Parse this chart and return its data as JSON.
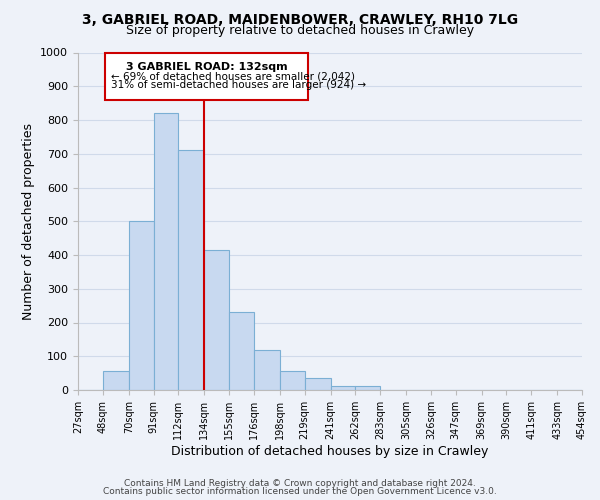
{
  "title_line1": "3, GABRIEL ROAD, MAIDENBOWER, CRAWLEY, RH10 7LG",
  "title_line2": "Size of property relative to detached houses in Crawley",
  "xlabel": "Distribution of detached houses by size in Crawley",
  "ylabel": "Number of detached properties",
  "footer_line1": "Contains HM Land Registry data © Crown copyright and database right 2024.",
  "footer_line2": "Contains public sector information licensed under the Open Government Licence v3.0.",
  "bar_edges": [
    27,
    48,
    70,
    91,
    112,
    134,
    155,
    176,
    198,
    219,
    241,
    262,
    283,
    305,
    326,
    347,
    369,
    390,
    411,
    433,
    454
  ],
  "bar_heights": [
    0,
    55,
    500,
    820,
    710,
    415,
    230,
    118,
    55,
    35,
    12,
    12,
    0,
    0,
    0,
    0,
    0,
    0,
    0,
    0
  ],
  "bar_color": "#c8d9f0",
  "bar_edgecolor": "#7bafd4",
  "reference_line_x": 134,
  "ylim": [
    0,
    1000
  ],
  "yticks": [
    0,
    100,
    200,
    300,
    400,
    500,
    600,
    700,
    800,
    900,
    1000
  ],
  "annotation_title": "3 GABRIEL ROAD: 132sqm",
  "annotation_line1": "← 69% of detached houses are smaller (2,042)",
  "annotation_line2": "31% of semi-detached houses are larger (924) →",
  "annotation_box_color": "#ffffff",
  "annotation_box_edgecolor": "#cc0000",
  "ref_line_color": "#cc0000",
  "grid_color": "#d0daea",
  "bg_color": "#eef2f9",
  "tick_labels": [
    "27sqm",
    "48sqm",
    "70sqm",
    "91sqm",
    "112sqm",
    "134sqm",
    "155sqm",
    "176sqm",
    "198sqm",
    "219sqm",
    "241sqm",
    "262sqm",
    "283sqm",
    "305sqm",
    "326sqm",
    "347sqm",
    "369sqm",
    "390sqm",
    "411sqm",
    "433sqm",
    "454sqm"
  ]
}
